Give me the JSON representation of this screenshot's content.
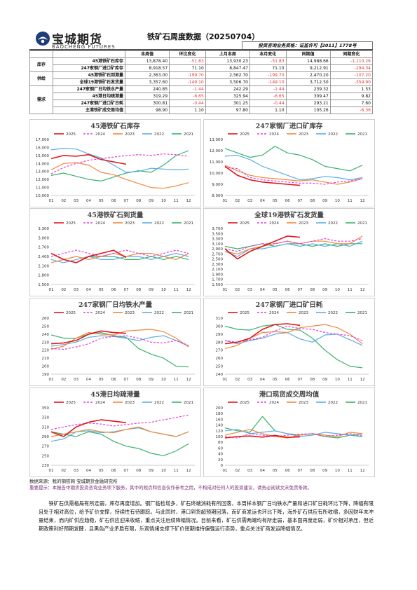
{
  "header": {
    "logo_cn": "宝城期货",
    "logo_en": "BAOCHENG FUTURES",
    "title": "铁矿石周度数据（20250704）",
    "license": "投资咨询业务资格：证监许可【2011】1778号"
  },
  "table": {
    "columns": [
      "本周值",
      "环比变化",
      "上月本周",
      "本月变化",
      "同期值",
      "同期变化"
    ],
    "groups": [
      {
        "name": "库存",
        "rows": [
          {
            "label": "45港铁矿石库存",
            "values": [
              "13,878.40",
              "-51.83",
              "13,930.23",
              "-51.83",
              "14,988.66",
              "-1,110.26"
            ]
          },
          {
            "label": "247家钢厂进口矿库存",
            "values": [
              "8,918.57",
              "71.10",
              "8,847.47",
              "71.10",
              "9,212.91",
              "-294.34"
            ]
          }
        ]
      },
      {
        "name": "供给",
        "rows": [
          {
            "label": "45港铁矿石到港量",
            "values": [
              "2,363.00",
              "-199.70",
              "2,562.70",
              "-199.70",
              "2,470.20",
              "-107.20"
            ]
          },
          {
            "label": "全球19港铁矿石发货量",
            "values": [
              "3,357.60",
              "-149.10",
              "3,506.70",
              "-149.10",
              "3,712.50",
              "-354.90"
            ]
          }
        ]
      },
      {
        "name": "需求",
        "rows": [
          {
            "label": "247家钢厂日均铁水产量",
            "values": [
              "240.85",
              "-1.44",
              "242.29",
              "-1.44",
              "239.32",
              "1.53"
            ]
          },
          {
            "label": "45港日均疏港量",
            "values": [
              "319.29",
              "-6.65",
              "325.94",
              "-6.65",
              "309.47",
              "9.82"
            ]
          },
          {
            "label": "247家钢厂进口矿日耗",
            "values": [
              "300.81",
              "-0.44",
              "301.25",
              "-0.44",
              "293.21",
              "7.60"
            ]
          },
          {
            "label": "主港铁矿成交周均值",
            "values": [
              "98.90",
              "1.10",
              "97.80",
              "1.10",
              "105.26",
              "-6.36"
            ]
          }
        ]
      }
    ]
  },
  "legend": {
    "years": [
      "2025",
      "2024",
      "2023",
      "2022",
      "2021"
    ]
  },
  "colors": {
    "2025": "#e0161b",
    "2024": "#e63fd7",
    "2023": "#f0883a",
    "2022": "#5aaee8",
    "2021": "#37b36b"
  },
  "x_ticks": [
    "01",
    "02",
    "03",
    "04",
    "05",
    "06",
    "07",
    "08",
    "09",
    "10",
    "11",
    "12"
  ],
  "footer": {
    "source": "数据来源：我的钢铁网 宝城期货金融研究所",
    "disclaimer": "重要提示：本报告中期货投资咨询业务项下服务，其中的观点和信息仅作参考之用，不构成对任何人的投资建议，请务必阅读文末免责条款。"
  },
  "analysis": "铁矿石供需格局有所走弱，库存再度增加。钢厂临检增多，矿石终端消耗有所回落，本周样本钢厂日均铁水产量和进口矿日耗环比下降，降幅有限且处于相对高位，给予矿价支撑，持续性有待跟踪。与此同时，港口到货超预期回落，而矿商发运也环比下降，海外矿石供应有所收缩，多因财年末冲量结束，而内矿供应趋稳，矿石供应迎来收缩，重点关注后续降幅情况。目前来看，矿石供需两端均有所走弱，基本面再度走弱，矿价相对承压，但近期政策利好预期发酵，且黑色产业矛盾有限，乐观情绪支撑下矿价短期维持偏强运行态势，重点关注矿商发运降幅情况。",
  "chart_data": [
    {
      "type": "line",
      "title": "45港铁矿石库存",
      "ylim": [
        10000,
        17000
      ],
      "yticks": [
        "17,000",
        "16,000",
        "15,000",
        "14,000",
        "13,000",
        "12,000",
        "11,000",
        "10,000"
      ],
      "series": [
        {
          "name": "2025",
          "values": [
            14600,
            15000,
            14900,
            15100,
            14500,
            14200,
            13900
          ]
        },
        {
          "name": "2024",
          "values": [
            12700,
            13500,
            14000,
            14400,
            14600,
            14800,
            15000,
            15100,
            15000,
            15200,
            15100,
            14900
          ]
        },
        {
          "name": "2023",
          "values": [
            13200,
            14000,
            14100,
            13800,
            12900,
            12600,
            12000,
            11500,
            11000,
            10900,
            11200,
            11600
          ]
        },
        {
          "name": "2022",
          "values": [
            15700,
            15900,
            15800,
            15200,
            14700,
            13800,
            12900,
            13000,
            13400,
            13300,
            13200,
            13300
          ]
        },
        {
          "name": "2021",
          "values": [
            12500,
            12800,
            12400,
            12000,
            11800,
            12300,
            12800,
            13100,
            12900,
            13800,
            15000,
            15600
          ]
        }
      ]
    },
    {
      "type": "line",
      "title": "247家钢厂进口矿库存",
      "ylim": [
        8000,
        13000
      ],
      "yticks": [
        "13,000",
        "12,000",
        "11,000",
        "10,000",
        "9,000",
        "8,000"
      ],
      "series": [
        {
          "name": "2025",
          "values": [
            10600,
            9800,
            9400,
            9200,
            9100,
            9000,
            8900
          ]
        },
        {
          "name": "2024",
          "values": [
            10500,
            10400,
            9600,
            9400,
            9300,
            9200,
            9100,
            9100,
            9000,
            9200,
            9300,
            9500
          ]
        },
        {
          "name": "2023",
          "values": [
            10700,
            10200,
            9800,
            9600,
            9500,
            9400,
            9300,
            9400,
            9200,
            9000,
            9200,
            9500
          ]
        },
        {
          "name": "2022",
          "values": [
            11500,
            11600,
            11200,
            10600,
            10200,
            9800,
            9400,
            9500,
            9700,
            9600,
            9400,
            9600
          ]
        },
        {
          "name": "2021",
          "values": [
            12200,
            11800,
            11400,
            11600,
            12400,
            11800,
            11600,
            11200,
            10600,
            10400,
            10200,
            10700
          ]
        }
      ]
    },
    {
      "type": "line",
      "title": "45港铁矿石到货量",
      "ylim": [
        1500,
        3300
      ],
      "yticks": [
        "3,300",
        "3,000",
        "2,700",
        "2,400",
        "2,100",
        "1,800",
        "1,500"
      ],
      "series": [
        {
          "name": "2025",
          "values": [
            2500,
            2300,
            2200,
            2400,
            2500,
            2600,
            2363
          ]
        },
        {
          "name": "2024",
          "values": [
            2400,
            2500,
            2600,
            2500,
            2400,
            2500,
            2600,
            2500,
            2400,
            2500,
            2600,
            2500
          ]
        },
        {
          "name": "2023",
          "values": [
            2200,
            2300,
            2400,
            2300,
            2400,
            2500,
            2400,
            2500,
            2500,
            2400,
            2300,
            2500
          ]
        },
        {
          "name": "2022",
          "values": [
            2300,
            2200,
            2300,
            2400,
            2300,
            2300,
            2400,
            2400,
            2300,
            2400,
            2500,
            2400
          ]
        },
        {
          "name": "2021",
          "values": [
            2500,
            2300,
            2200,
            2400,
            2400,
            2400,
            2300,
            2300,
            2400,
            2300,
            2400,
            2300
          ]
        }
      ]
    },
    {
      "type": "line",
      "title": "全球19港铁矿石发货量",
      "ylim": [
        1500,
        3700
      ],
      "yticks": [
        "3,700",
        "3,500",
        "3,300",
        "3,100",
        "2,900",
        "2,700",
        "2,500",
        "2,300",
        "2,100",
        "1,900",
        "1,700",
        "1,500"
      ],
      "series": [
        {
          "name": "2025",
          "values": [
            2900,
            2500,
            2800,
            3000,
            3200,
            3400,
            3357
          ]
        },
        {
          "name": "2024",
          "values": [
            2900,
            2800,
            3000,
            3100,
            3100,
            3200,
            3100,
            3200,
            3300,
            3200,
            3200,
            3300
          ]
        },
        {
          "name": "2023",
          "values": [
            2800,
            2700,
            2900,
            3000,
            3100,
            3200,
            3100,
            3200,
            3200,
            3100,
            3100,
            3400
          ]
        },
        {
          "name": "2022",
          "values": [
            2800,
            2600,
            2900,
            2900,
            3000,
            3100,
            3000,
            3100,
            3000,
            3100,
            3000,
            3200
          ]
        },
        {
          "name": "2021",
          "values": [
            3000,
            2900,
            3000,
            3100,
            3000,
            3100,
            3100,
            3000,
            3100,
            3000,
            3100,
            3100
          ]
        }
      ]
    },
    {
      "type": "line",
      "title": "247家钢厂日均铁水产量",
      "ylim": [
        190,
        260
      ],
      "yticks": [
        "260",
        "250",
        "240",
        "230",
        "220",
        "210",
        "200",
        "190"
      ],
      "series": [
        {
          "name": "2025",
          "values": [
            228,
            229,
            232,
            240,
            244,
            242,
            241
          ]
        },
        {
          "name": "2024",
          "values": [
            222,
            221,
            224,
            228,
            235,
            237,
            238,
            235,
            230,
            229,
            232,
            226
          ]
        },
        {
          "name": "2023",
          "values": [
            221,
            225,
            235,
            242,
            240,
            239,
            244,
            245,
            246,
            243,
            235,
            224
          ]
        },
        {
          "name": "2022",
          "values": [
            225,
            227,
            230,
            236,
            238,
            237,
            235,
            232,
            236,
            238,
            232,
            225
          ]
        },
        {
          "name": "2021",
          "values": [
            239,
            235,
            235,
            240,
            242,
            238,
            236,
            222,
            215,
            210,
            200,
            199
          ]
        }
      ]
    },
    {
      "type": "line",
      "title": "247家钢厂进口矿日耗",
      "ylim": [
        240,
        310
      ],
      "yticks": [
        "310",
        "300",
        "290",
        "280",
        "270",
        "260",
        "250",
        "240"
      ],
      "series": [
        {
          "name": "2025",
          "values": [
            278,
            280,
            285,
            296,
            302,
            303,
            301
          ]
        },
        {
          "name": "2024",
          "values": [
            282,
            280,
            283,
            286,
            294,
            300,
            297,
            296,
            292,
            290,
            288,
            282
          ]
        },
        {
          "name": "2023",
          "values": [
            272,
            276,
            285,
            292,
            293,
            292,
            298,
            300,
            302,
            298,
            290,
            278
          ]
        },
        {
          "name": "2022",
          "values": [
            282,
            278,
            282,
            285,
            290,
            292,
            284,
            280,
            289,
            290,
            283,
            276
          ]
        },
        {
          "name": "2021",
          "values": [
            300,
            296,
            295,
            300,
            302,
            296,
            295,
            285,
            270,
            258,
            250,
            248
          ]
        }
      ]
    },
    {
      "type": "line",
      "title": "45港日均疏港量",
      "ylim": [
        230,
        350
      ],
      "yticks": [
        "350",
        "330",
        "310",
        "290",
        "270",
        "250",
        "230"
      ],
      "series": [
        {
          "name": "2025",
          "values": [
            300,
            290,
            310,
            320,
            325,
            322,
            319
          ]
        },
        {
          "name": "2024",
          "values": [
            305,
            310,
            315,
            318,
            316,
            312,
            315,
            318,
            320,
            325,
            330,
            335
          ]
        },
        {
          "name": "2023",
          "values": [
            290,
            295,
            300,
            305,
            300,
            298,
            305,
            310,
            300,
            295,
            290,
            300
          ]
        },
        {
          "name": "2022",
          "values": [
            280,
            285,
            300,
            302,
            298,
            300,
            305,
            308,
            300,
            295,
            290,
            300
          ]
        },
        {
          "name": "2021",
          "values": [
            300,
            295,
            290,
            300,
            295,
            280,
            270,
            265,
            255,
            250,
            260,
            275
          ]
        }
      ]
    },
    {
      "type": "line",
      "title": "港口现货成交周均值",
      "ylim": [
        0,
        200
      ],
      "yticks": [
        "200",
        "180",
        "160",
        "140",
        "120",
        "100",
        "80",
        "60",
        "40",
        "20",
        "0"
      ],
      "series": [
        {
          "name": "2025",
          "values": [
            95,
            100,
            102,
            98,
            104,
            97,
            99
          ]
        },
        {
          "name": "2024",
          "values": [
            100,
            95,
            110,
            105,
            100,
            105,
            108,
            110,
            100,
            105,
            110,
            102
          ]
        },
        {
          "name": "2023",
          "values": [
            105,
            115,
            125,
            110,
            100,
            95,
            105,
            110,
            105,
            100,
            115,
            110
          ]
        },
        {
          "name": "2022",
          "values": [
            120,
            125,
            110,
            115,
            120,
            110,
            100,
            105,
            115,
            110,
            105,
            108
          ]
        },
        {
          "name": "2021",
          "values": [
            130,
            120,
            115,
            170,
            120,
            110,
            105,
            110,
            100,
            95,
            105,
            100
          ]
        }
      ]
    }
  ]
}
